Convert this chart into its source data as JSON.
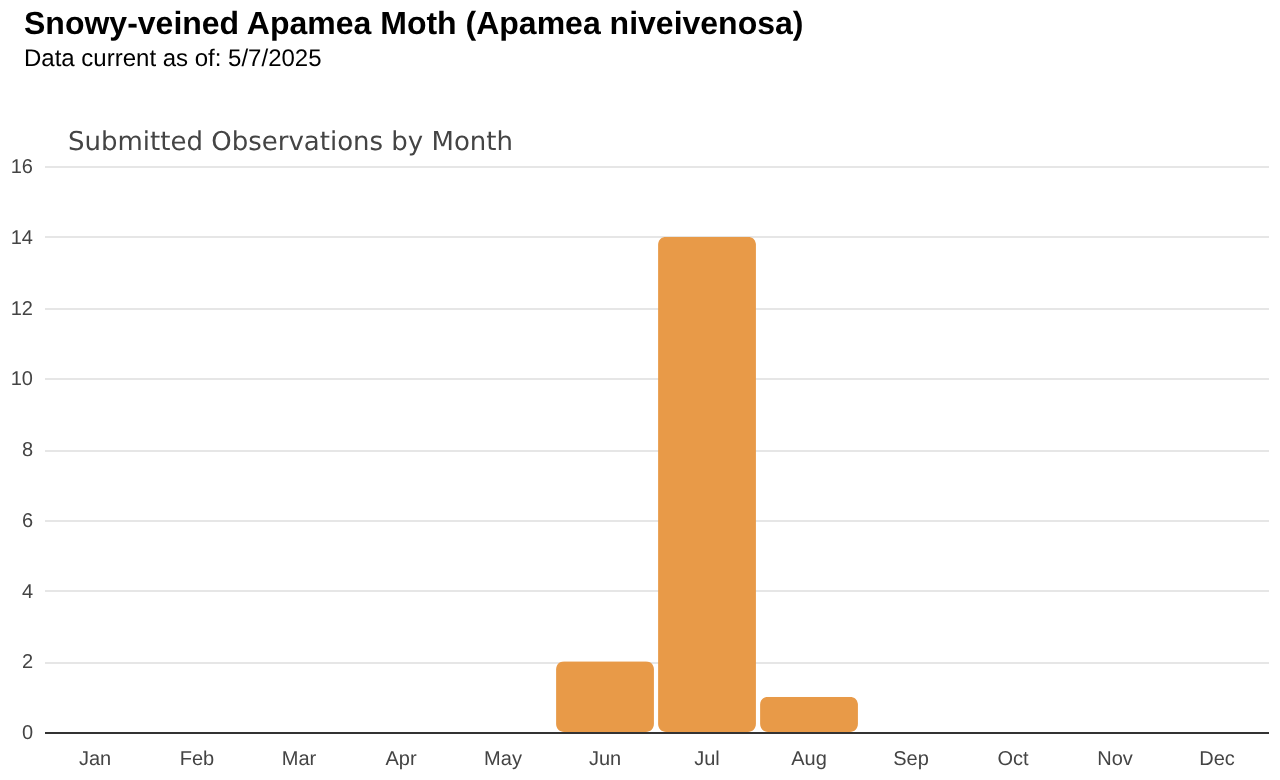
{
  "chart_data": {
    "type": "bar",
    "title": "Snowy-veined Apamea Moth   (Apamea niveivenosa)",
    "subtitle": "Data current as of: 5/7/2025",
    "annotations": [
      "Submitted Observations by Month"
    ],
    "categories": [
      "Jan",
      "Feb",
      "Mar",
      "Apr",
      "May",
      "Jun",
      "Jul",
      "Aug",
      "Sep",
      "Oct",
      "Nov",
      "Dec"
    ],
    "values": [
      0,
      0,
      0,
      0,
      0,
      2,
      14,
      1,
      0,
      0,
      0,
      0
    ],
    "color": "#e89a48",
    "ylim": [
      0,
      16
    ],
    "yticks": [
      0,
      2,
      4,
      6,
      8,
      10,
      12,
      14,
      16
    ],
    "grid": "y"
  }
}
